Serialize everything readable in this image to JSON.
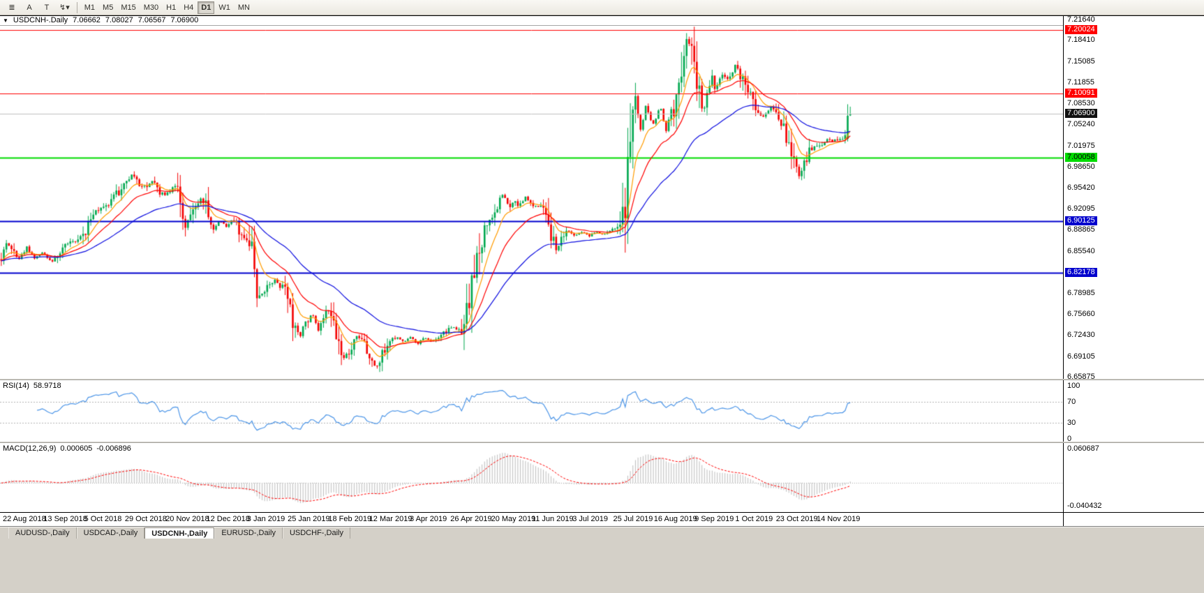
{
  "toolbar": {
    "tools": [
      {
        "name": "menu-lines-icon",
        "glyph": "≣"
      },
      {
        "name": "cursor-tool-a",
        "glyph": "A"
      },
      {
        "name": "text-tool-icon",
        "glyph": "T"
      },
      {
        "name": "draw-tools-dropdown-icon",
        "glyph": "↯▾"
      }
    ],
    "timeframes": [
      "M1",
      "M5",
      "M15",
      "M30",
      "H1",
      "H4",
      "D1",
      "W1",
      "MN"
    ],
    "active_timeframe": "D1"
  },
  "chart_data": {
    "type": "candlestick",
    "symbol": "USDCNH",
    "period": "Daily",
    "title": {
      "collapse_glyph": "▼",
      "symbol": "USDCNH-.Daily",
      "open": "7.06662",
      "high": "7.08027",
      "low": "7.06567",
      "close": "7.06900"
    },
    "price_axis": {
      "max": 7.2215,
      "min": 6.656,
      "ticks": [
        "7.21640",
        "7.18410",
        "7.15085",
        "7.11855",
        "7.08530",
        "7.05240",
        "7.01975",
        "6.98650",
        "6.95420",
        "6.92095",
        "6.88865",
        "6.85540",
        "6.78985",
        "6.75660",
        "6.72430",
        "6.69105",
        "6.65875"
      ]
    },
    "horizontal_lines": [
      {
        "price": 7.20024,
        "color": "#ff0000",
        "width": 1,
        "badge_bg": "#ff0000",
        "badge_text": "#ffffff"
      },
      {
        "price": 7.10091,
        "color": "#ff0000",
        "width": 1,
        "badge_bg": "#ff0000",
        "badge_text": "#ffffff"
      },
      {
        "price": 7.069,
        "color": "#c0c0c0",
        "width": 1,
        "badge_bg": "#111111",
        "badge_text": "#ffffff"
      },
      {
        "price": 7.00058,
        "color": "#00dc00",
        "width": 2,
        "badge_bg": "#00dc00",
        "badge_text": "#000000"
      },
      {
        "price": 6.90125,
        "color": "#0000cd",
        "width": 2,
        "badge_bg": "#0000cd",
        "badge_text": "#ffffff"
      },
      {
        "price": 6.82178,
        "color": "#0000cd",
        "width": 2,
        "badge_bg": "#0000cd",
        "badge_text": "#ffffff"
      }
    ],
    "x_axis_dates": [
      "22 Aug 2018",
      "13 Sep 2018",
      "5 Oct 2018",
      "29 Oct 2018",
      "20 Nov 2018",
      "12 Dec 2018",
      "3 Jan 2019",
      "25 Jan 2019",
      "18 Feb 2019",
      "12 Mar 2019",
      "3 Apr 2019",
      "26 Apr 2019",
      "20 May 2019",
      "11 Jun 2019",
      "3 Jul 2019",
      "25 Jul 2019",
      "16 Aug 2019",
      "9 Sep 2019",
      "1 Oct 2019",
      "23 Oct 2019",
      "14 Nov 2019"
    ],
    "data_width": 1220,
    "candle_count": 333,
    "close_path": [
      [
        0,
        6.838
      ],
      [
        8,
        6.868
      ],
      [
        18,
        6.858
      ],
      [
        28,
        6.842
      ],
      [
        38,
        6.862
      ],
      [
        50,
        6.845
      ],
      [
        63,
        6.853
      ],
      [
        75,
        6.838
      ],
      [
        88,
        6.858
      ],
      [
        100,
        6.868
      ],
      [
        112,
        6.872
      ],
      [
        121,
        6.885
      ],
      [
        132,
        6.912
      ],
      [
        145,
        6.922
      ],
      [
        158,
        6.932
      ],
      [
        170,
        6.948
      ],
      [
        182,
        6.968
      ],
      [
        192,
        6.975
      ],
      [
        200,
        6.952
      ],
      [
        210,
        6.958
      ],
      [
        220,
        6.966
      ],
      [
        228,
        6.948
      ],
      [
        238,
        6.942
      ],
      [
        247,
        6.952
      ],
      [
        256,
        6.955
      ],
      [
        263,
        6.892
      ],
      [
        272,
        6.908
      ],
      [
        281,
        6.928
      ],
      [
        290,
        6.941
      ],
      [
        298,
        6.912
      ],
      [
        306,
        6.888
      ],
      [
        315,
        6.905
      ],
      [
        324,
        6.893
      ],
      [
        333,
        6.905
      ],
      [
        342,
        6.888
      ],
      [
        352,
        6.872
      ],
      [
        360,
        6.856
      ],
      [
        368,
        6.795
      ],
      [
        377,
        6.788
      ],
      [
        386,
        6.803
      ],
      [
        395,
        6.812
      ],
      [
        404,
        6.795
      ],
      [
        413,
        6.782
      ],
      [
        421,
        6.742
      ],
      [
        430,
        6.722
      ],
      [
        439,
        6.747
      ],
      [
        448,
        6.757
      ],
      [
        457,
        6.73
      ],
      [
        466,
        6.768
      ],
      [
        475,
        6.758
      ],
      [
        484,
        6.712
      ],
      [
        493,
        6.692
      ],
      [
        502,
        6.698
      ],
      [
        511,
        6.722
      ],
      [
        520,
        6.712
      ],
      [
        531,
        6.69
      ],
      [
        540,
        6.672
      ],
      [
        549,
        6.703
      ],
      [
        558,
        6.712
      ],
      [
        568,
        6.722
      ],
      [
        578,
        6.714
      ],
      [
        588,
        6.72
      ],
      [
        598,
        6.71
      ],
      [
        608,
        6.72
      ],
      [
        618,
        6.714
      ],
      [
        628,
        6.721
      ],
      [
        638,
        6.728
      ],
      [
        648,
        6.737
      ],
      [
        658,
        6.73
      ],
      [
        666,
        6.742
      ],
      [
        673,
        6.792
      ],
      [
        681,
        6.822
      ],
      [
        690,
        6.872
      ],
      [
        698,
        6.902
      ],
      [
        706,
        6.915
      ],
      [
        714,
        6.928
      ],
      [
        721,
        6.946
      ],
      [
        729,
        6.921
      ],
      [
        737,
        6.932
      ],
      [
        745,
        6.926
      ],
      [
        753,
        6.941
      ],
      [
        761,
        6.928
      ],
      [
        770,
        6.924
      ],
      [
        779,
        6.931
      ],
      [
        786,
        6.901
      ],
      [
        792,
        6.878
      ],
      [
        797,
        6.852
      ],
      [
        806,
        6.879
      ],
      [
        815,
        6.886
      ],
      [
        824,
        6.879
      ],
      [
        834,
        6.885
      ],
      [
        844,
        6.879
      ],
      [
        854,
        6.886
      ],
      [
        864,
        6.88
      ],
      [
        874,
        6.886
      ],
      [
        884,
        6.889
      ],
      [
        892,
        6.896
      ],
      [
        898,
        6.952
      ],
      [
        903,
        7.022
      ],
      [
        907,
        7.058
      ],
      [
        910,
        7.092
      ],
      [
        914,
        7.062
      ],
      [
        918,
        7.042
      ],
      [
        922,
        7.062
      ],
      [
        926,
        7.088
      ],
      [
        930,
        7.062
      ],
      [
        935,
        7.052
      ],
      [
        940,
        7.062
      ],
      [
        945,
        7.082
      ],
      [
        950,
        7.06
      ],
      [
        955,
        7.042
      ],
      [
        960,
        7.062
      ],
      [
        965,
        7.082
      ],
      [
        970,
        7.092
      ],
      [
        975,
        7.128
      ],
      [
        980,
        7.162
      ],
      [
        984,
        7.194
      ],
      [
        988,
        7.172
      ],
      [
        992,
        7.182
      ],
      [
        996,
        7.128
      ],
      [
        1000,
        7.102
      ],
      [
        1005,
        7.082
      ],
      [
        1010,
        7.082
      ],
      [
        1015,
        7.102
      ],
      [
        1020,
        7.122
      ],
      [
        1025,
        7.112
      ],
      [
        1030,
        7.122
      ],
      [
        1036,
        7.132
      ],
      [
        1042,
        7.122
      ],
      [
        1048,
        7.132
      ],
      [
        1054,
        7.146
      ],
      [
        1059,
        7.132
      ],
      [
        1064,
        7.12
      ],
      [
        1069,
        7.112
      ],
      [
        1074,
        7.098
      ],
      [
        1080,
        7.082
      ],
      [
        1086,
        7.072
      ],
      [
        1092,
        7.064
      ],
      [
        1098,
        7.072
      ],
      [
        1104,
        7.08
      ],
      [
        1110,
        7.07
      ],
      [
        1116,
        7.062
      ],
      [
        1122,
        7.052
      ],
      [
        1128,
        7.032
      ],
      [
        1134,
        7.01
      ],
      [
        1140,
        6.99
      ],
      [
        1145,
        6.974
      ],
      [
        1150,
        6.986
      ],
      [
        1156,
        7.002
      ],
      [
        1162,
        7.012
      ],
      [
        1168,
        7.022
      ],
      [
        1174,
        7.018
      ],
      [
        1180,
        7.026
      ],
      [
        1186,
        7.032
      ],
      [
        1192,
        7.026
      ],
      [
        1198,
        7.032
      ],
      [
        1204,
        7.028
      ],
      [
        1210,
        7.036
      ],
      [
        1216,
        7.062
      ]
    ],
    "last_candles": [
      {
        "open": 7.03,
        "high": 7.084,
        "low": 7.026,
        "close": 7.066
      },
      {
        "open": 7.06662,
        "high": 7.08027,
        "low": 7.06567,
        "close": 7.069
      }
    ],
    "colors": {
      "up": "#00a84f",
      "down": "#f40000",
      "background": "#ffffff"
    },
    "moving_averages": [
      {
        "period": 9,
        "color": "#ff9c00"
      },
      {
        "period": 20,
        "color": "#ff0000"
      },
      {
        "period": 48,
        "color": "#0d0de0"
      }
    ],
    "rsi": {
      "label": "RSI(14)",
      "value": "58.9718",
      "period": 14,
      "levels": [
        100,
        70,
        30,
        0
      ],
      "dash_levels": [
        70,
        30
      ],
      "line_color": "#4d96e8"
    },
    "macd": {
      "label": "MACD(12,26,9)",
      "value_main": "0.000605",
      "value_signal": "-0.006896",
      "fast": 12,
      "slow": 26,
      "signal": 9,
      "axis_max": 0.060687,
      "axis_min": -0.040432,
      "axis_max_label": "0.060687",
      "axis_min_label": "-0.040432",
      "histogram_color": "#bdbdbd",
      "signal_color": "#ff0000"
    }
  },
  "tabs": {
    "items": [
      {
        "label": "AUDUSD-,Daily",
        "active": false
      },
      {
        "label": "USDCAD-,Daily",
        "active": false
      },
      {
        "label": "USDCNH-,Daily",
        "active": true
      },
      {
        "label": "EURUSD-,Daily",
        "active": false
      },
      {
        "label": "USDCHF-,Daily",
        "active": false
      }
    ]
  }
}
